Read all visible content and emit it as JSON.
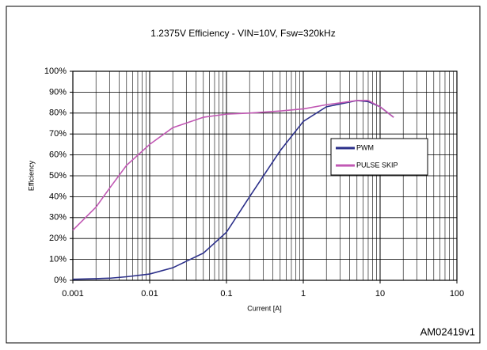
{
  "chart_data": {
    "type": "line",
    "title": "1.2375V Efficiency - VIN=10V, Fsw=320kHz",
    "xlabel": "Current [A]",
    "ylabel": "Efficiency",
    "annotation": "AM02419v1",
    "xscale": "log",
    "grid": true,
    "legend": "right",
    "xlim": [
      0.001,
      100
    ],
    "xticks": [
      0.001,
      0.01,
      0.1,
      1,
      10,
      100
    ],
    "ylim": [
      0,
      100
    ],
    "yticks": [
      {
        "value": 0,
        "label": "0%"
      },
      {
        "value": 10,
        "label": "10%"
      },
      {
        "value": 20,
        "label": "20%"
      },
      {
        "value": 30,
        "label": "30%"
      },
      {
        "value": 40,
        "label": "40%"
      },
      {
        "value": 50,
        "label": "50%"
      },
      {
        "value": 60,
        "label": "60%"
      },
      {
        "value": 70,
        "label": "70%"
      },
      {
        "value": 80,
        "label": "80%"
      },
      {
        "value": 90,
        "label": "90%"
      },
      {
        "value": 100,
        "label": "100%"
      }
    ],
    "x": [
      0.001,
      0.002,
      0.003,
      0.005,
      0.01,
      0.02,
      0.05,
      0.1,
      0.2,
      0.5,
      1,
      2,
      5,
      7,
      10,
      15
    ],
    "series": [
      {
        "name": "PWM",
        "color": "#2b2f8a",
        "values": [
          0.5,
          0.8,
          1,
          1.7,
          3,
          6,
          13,
          23,
          40,
          62,
          76,
          83,
          86,
          85.5,
          83,
          78
        ]
      },
      {
        "name": "PULSE SKIP",
        "color": "#c158b4",
        "values": [
          24,
          35,
          44,
          55,
          65,
          73,
          78,
          79.5,
          80,
          81,
          82,
          84,
          86,
          86,
          83,
          78
        ]
      }
    ]
  }
}
